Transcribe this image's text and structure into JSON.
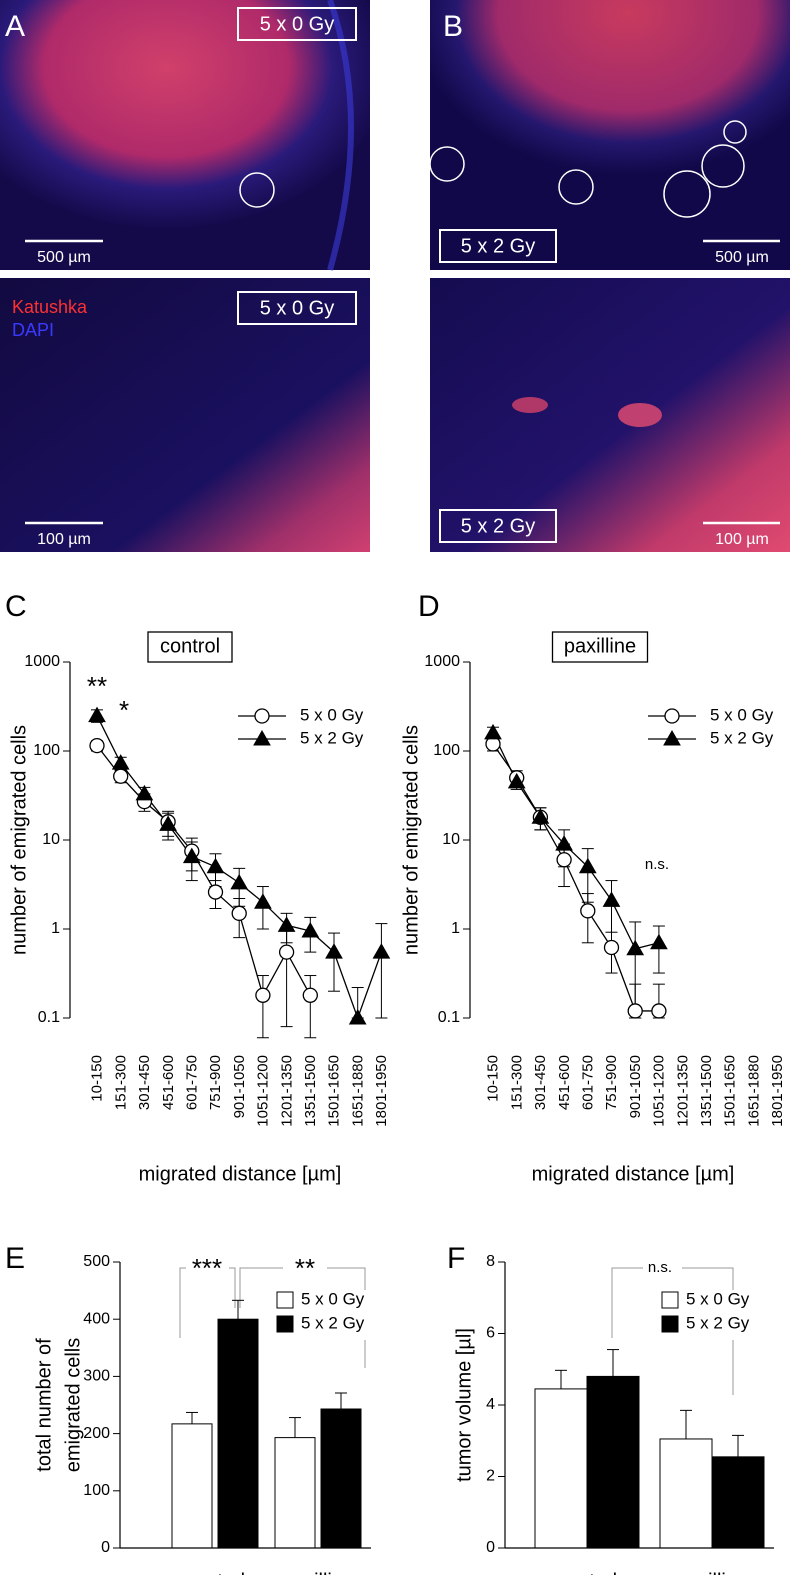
{
  "image_panels": [
    {
      "panel_label": "A",
      "condition": "5 x 0 Gy",
      "scale_bar": "500 µm"
    },
    {
      "panel_label": "B",
      "condition": "5 x 2 Gy",
      "scale_bar": "500 µm"
    },
    {
      "condition": "5 x 0 Gy",
      "scale_bar": "100 µm",
      "channels": [
        "Katushka",
        "DAPI"
      ]
    },
    {
      "condition": "5 x 2 Gy",
      "scale_bar": "100 µm"
    }
  ],
  "chart_data": [
    {
      "type": "line",
      "panel_label": "C",
      "title": "control",
      "x_label": "migrated distance [µm]",
      "y_label": "number of emigrated  cells",
      "log_scale": true,
      "ylim": [
        0.1,
        1000
      ],
      "yticks": [
        0.1,
        1,
        10,
        100,
        1000
      ],
      "categories": [
        "10-150",
        "151-300",
        "301-450",
        "451-600",
        "601-750",
        "751-900",
        "901-1050",
        "1051-1200",
        "1201-1350",
        "1351-1500",
        "1501-1650",
        "1651-1880",
        "1801-1950"
      ],
      "series": [
        {
          "name": "5 x 0 Gy",
          "marker": "open-circle",
          "color": "#000000",
          "values": [
            115,
            52,
            27,
            16,
            7.5,
            2.6,
            1.5,
            0.18,
            0.55,
            0.18,
            null,
            null,
            null
          ],
          "errors": [
            15,
            8,
            6,
            5,
            3,
            0.9,
            0.7,
            0.12,
            0.47,
            0.12,
            null,
            null,
            null
          ]
        },
        {
          "name": "5 x 2 Gy",
          "marker": "filled-triangle",
          "color": "#000000",
          "values": [
            250,
            73,
            33,
            15,
            6.5,
            5,
            3.3,
            2,
            1.1,
            0.95,
            0.55,
            0.1,
            0.55
          ],
          "errors": [
            40,
            12,
            6,
            5,
            3,
            2,
            1.5,
            1,
            0.4,
            0.4,
            0.35,
            0.12,
            0.6
          ]
        }
      ],
      "annotations": [
        "**",
        "*"
      ]
    },
    {
      "type": "line",
      "panel_label": "D",
      "title": "paxilline",
      "x_label": "migrated distance [µm]",
      "y_label": "number of emigrated  cells",
      "log_scale": true,
      "ylim": [
        0.1,
        1000
      ],
      "yticks": [
        0.1,
        1,
        10,
        100,
        1000
      ],
      "categories": [
        "10-150",
        "151-300",
        "301-450",
        "451-600",
        "601-750",
        "751-900",
        "901-1050",
        "1051-1200",
        "1201-1350",
        "1351-1500",
        "1501-1650",
        "1651-1880",
        "1801-1950"
      ],
      "series": [
        {
          "name": "5 x 0 Gy",
          "marker": "open-circle",
          "color": "#000000",
          "values": [
            120,
            50,
            18,
            6,
            1.6,
            0.62,
            0.12,
            0.12,
            null,
            null,
            null,
            null,
            null
          ],
          "errors": [
            20,
            10,
            5,
            3,
            0.9,
            0.3,
            0.12,
            0.12,
            null,
            null,
            null,
            null,
            null
          ]
        },
        {
          "name": "5 x 2 Gy",
          "marker": "filled-triangle",
          "color": "#000000",
          "values": [
            160,
            45,
            18,
            9,
            5,
            2.1,
            0.6,
            0.7,
            null,
            null,
            null,
            null,
            null
          ],
          "errors": [
            25,
            8,
            5,
            4,
            3,
            1.4,
            0.6,
            0.38,
            null,
            null,
            null,
            null,
            null
          ]
        }
      ],
      "annotations": [
        "n.s."
      ]
    },
    {
      "type": "bar",
      "panel_label": "E",
      "y_label_lines": [
        "total number of",
        "emigrated  cells"
      ],
      "ylim": [
        0,
        500
      ],
      "yticks": [
        0,
        100,
        200,
        300,
        400,
        500
      ],
      "categories": [
        "control",
        "paxilline"
      ],
      "series": [
        {
          "name": "5 x 0 Gy",
          "color": "#ffffff",
          "values": [
            217,
            193
          ],
          "errors": [
            20,
            35
          ]
        },
        {
          "name": "5 x 2 Gy",
          "color": "#000000",
          "values": [
            400,
            243
          ],
          "errors": [
            33,
            28
          ]
        }
      ],
      "annotations": [
        "***",
        "**"
      ]
    },
    {
      "type": "bar",
      "panel_label": "F",
      "y_label_lines": [
        "tumor volume [µl]"
      ],
      "ylim": [
        0,
        8
      ],
      "yticks": [
        0,
        2,
        4,
        6,
        8
      ],
      "categories": [
        "control",
        "paxilline"
      ],
      "series": [
        {
          "name": "5 x 0 Gy",
          "color": "#ffffff",
          "values": [
            4.45,
            3.05
          ],
          "errors": [
            0.52,
            0.8
          ]
        },
        {
          "name": "5 x 2 Gy",
          "color": "#000000",
          "values": [
            4.8,
            2.55
          ],
          "errors": [
            0.75,
            0.6
          ]
        }
      ],
      "annotations": [
        "n.s."
      ]
    }
  ]
}
